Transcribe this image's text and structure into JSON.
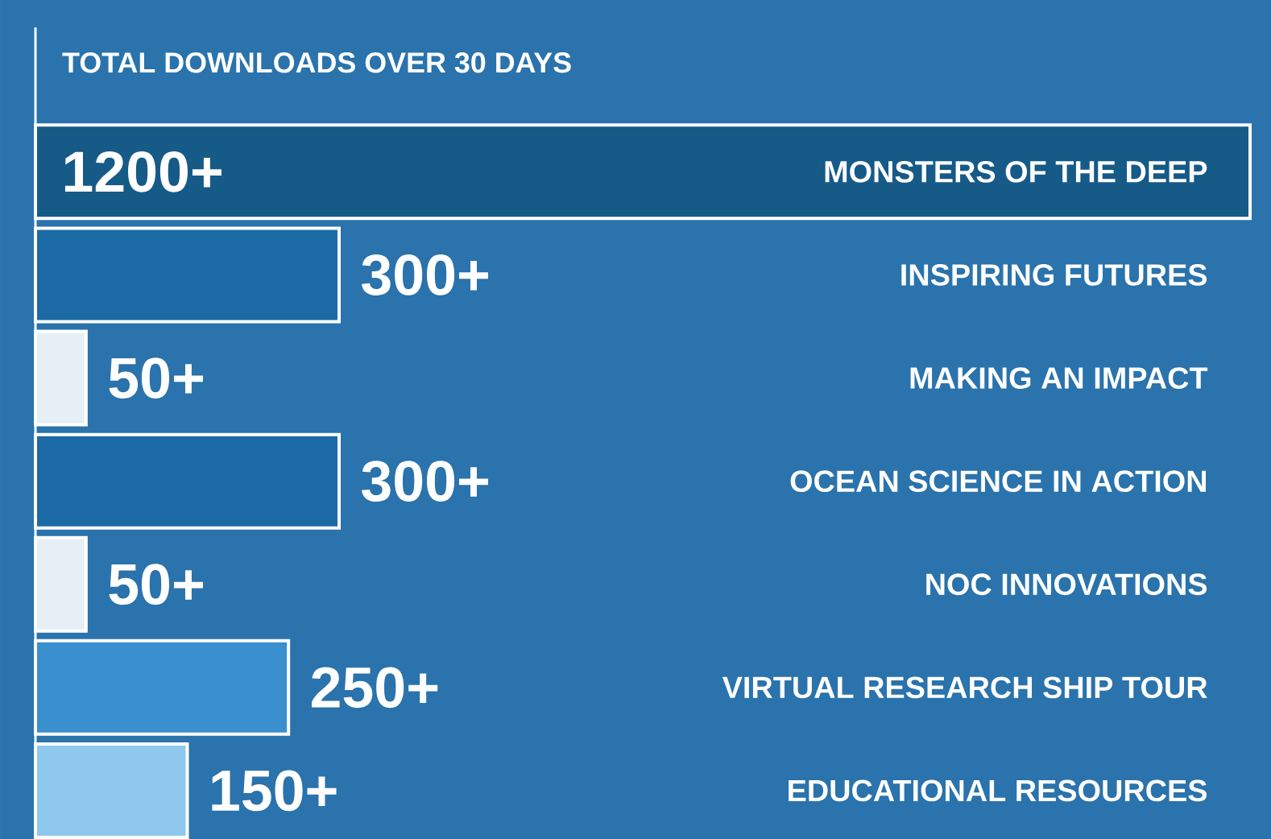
{
  "chart_data": {
    "type": "bar",
    "orientation": "horizontal",
    "title": "TOTAL DOWNLOADS OVER 30 DAYS",
    "categories": [
      "MONSTERS OF THE DEEP",
      "INSPIRING FUTURES",
      "MAKING AN IMPACT",
      "OCEAN SCIENCE IN ACTION",
      "NOC INNOVATIONS",
      "VIRTUAL RESEARCH SHIP TOUR",
      "EDUCATIONAL RESOURCES"
    ],
    "values": [
      1200,
      300,
      50,
      300,
      50,
      250,
      150
    ],
    "value_labels": [
      "1200+",
      "300+",
      "50+",
      "300+",
      "50+",
      "250+",
      "150+"
    ],
    "colors": [
      "#165a87",
      "#1c6aa5",
      "#e6eff6",
      "#1c6aa5",
      "#e6eff6",
      "#3a8fcf",
      "#8ec8ee"
    ]
  }
}
